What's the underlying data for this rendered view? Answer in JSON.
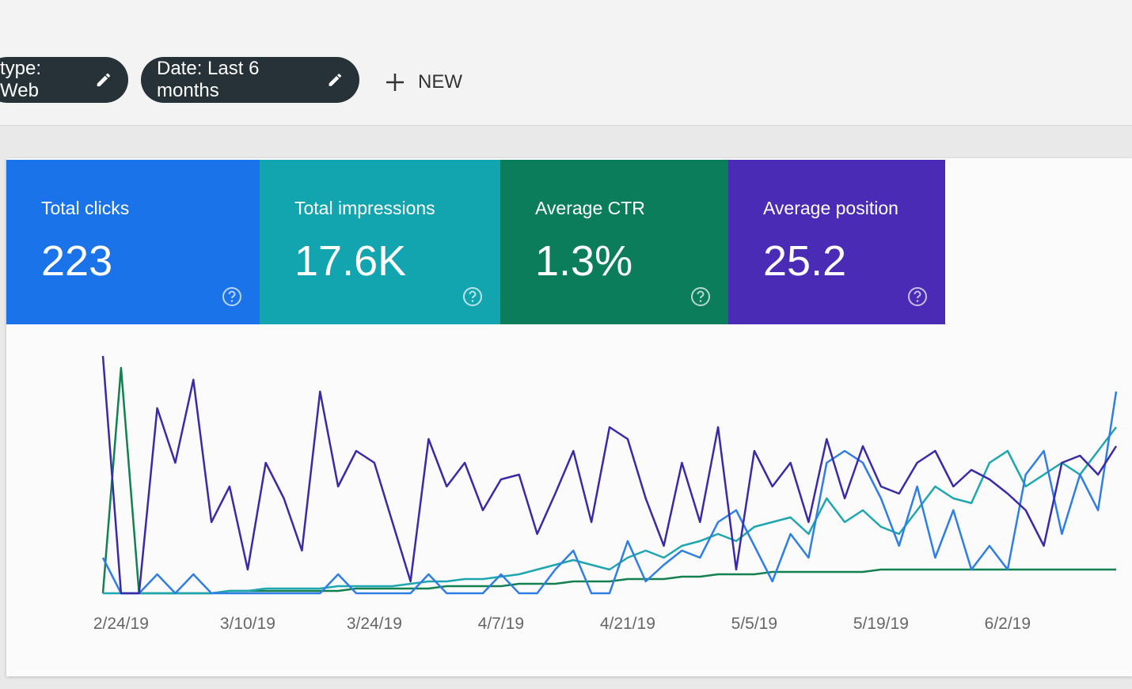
{
  "filters": [
    {
      "label": "type: Web"
    },
    {
      "label": "Date: Last 6 months"
    }
  ],
  "new_button": "NEW",
  "cards": [
    {
      "title": "Total clicks",
      "value": "223",
      "color": "#1a73e8"
    },
    {
      "title": "Total impressions",
      "value": "17.6K",
      "color": "#12a4af"
    },
    {
      "title": "Average CTR",
      "value": "1.3%",
      "color": "#0b7d5a"
    },
    {
      "title": "Average position",
      "value": "25.2",
      "color": "#4a2bb5"
    }
  ],
  "chart_data": {
    "type": "line",
    "x_labels": [
      "2/24/19",
      "3/10/19",
      "3/24/19",
      "4/7/19",
      "4/21/19",
      "5/5/19",
      "5/19/19",
      "6/2/19"
    ],
    "series": [
      {
        "color": "#3b2aa8",
        "values": [
          100,
          0,
          0,
          78,
          55,
          90,
          30,
          45,
          10,
          55,
          40,
          18,
          85,
          45,
          60,
          55,
          30,
          5,
          65,
          45,
          55,
          35,
          48,
          50,
          25,
          42,
          60,
          30,
          70,
          65,
          40,
          20,
          55,
          30,
          70,
          10,
          60,
          45,
          55,
          30,
          65,
          40,
          62,
          45,
          42,
          55,
          60,
          45,
          52,
          48,
          42,
          35,
          20,
          55,
          58,
          50,
          62
        ]
      },
      {
        "color": "#2f7ee6",
        "values": [
          15,
          0,
          0,
          8,
          0,
          8,
          0,
          0,
          0,
          0,
          0,
          0,
          0,
          8,
          0,
          0,
          0,
          0,
          8,
          0,
          0,
          0,
          8,
          0,
          0,
          10,
          18,
          0,
          0,
          22,
          5,
          12,
          18,
          15,
          30,
          35,
          20,
          5,
          25,
          15,
          55,
          60,
          55,
          40,
          20,
          45,
          15,
          35,
          10,
          20,
          10,
          50,
          60,
          25,
          50,
          35,
          85
        ]
      },
      {
        "color": "#1ea6b0",
        "values": [
          0,
          0,
          0,
          0,
          0,
          0,
          0,
          1,
          1,
          2,
          2,
          2,
          2,
          3,
          3,
          3,
          3,
          4,
          5,
          5,
          6,
          6,
          7,
          8,
          10,
          12,
          14,
          12,
          10,
          15,
          18,
          15,
          20,
          22,
          25,
          22,
          28,
          30,
          32,
          25,
          40,
          30,
          35,
          28,
          25,
          35,
          45,
          40,
          38,
          55,
          60,
          45,
          50,
          55,
          50,
          60,
          70
        ]
      },
      {
        "color": "#13804f",
        "values": [
          0,
          95,
          0,
          0,
          0,
          0,
          0,
          1,
          1,
          1,
          1,
          1,
          1,
          1,
          2,
          2,
          2,
          2,
          2,
          3,
          3,
          3,
          3,
          4,
          4,
          4,
          5,
          5,
          5,
          6,
          6,
          6,
          7,
          7,
          8,
          8,
          8,
          9,
          9,
          9,
          9,
          9,
          9,
          10,
          10,
          10,
          10,
          10,
          10,
          10,
          10,
          10,
          10,
          10,
          10,
          10,
          10
        ]
      }
    ]
  }
}
